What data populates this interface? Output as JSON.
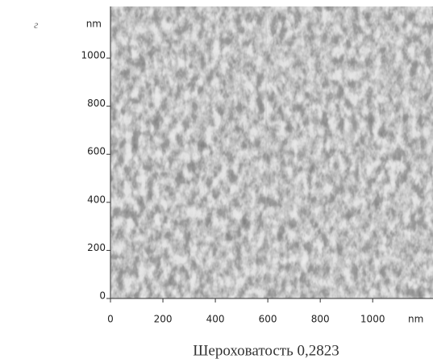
{
  "chart_data": {
    "type": "image",
    "panel_label": "г",
    "x_unit": "nm",
    "y_unit": "nm",
    "xlim": [
      0,
      1230
    ],
    "ylim": [
      0,
      1215
    ],
    "xticks": [
      0,
      200,
      400,
      600,
      800,
      1000
    ],
    "yticks": [
      0,
      200,
      400,
      600,
      800,
      1000
    ],
    "caption": "Шероховатость 0,2823"
  }
}
